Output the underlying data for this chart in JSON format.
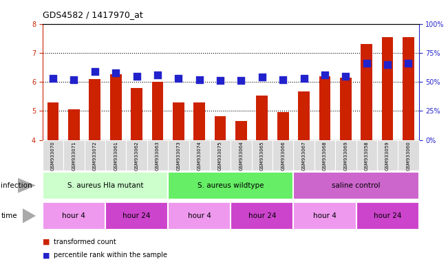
{
  "title": "GDS4582 / 1417970_at",
  "samples": [
    "GSM933070",
    "GSM933071",
    "GSM933072",
    "GSM933061",
    "GSM933062",
    "GSM933063",
    "GSM933073",
    "GSM933074",
    "GSM933075",
    "GSM933064",
    "GSM933065",
    "GSM933066",
    "GSM933067",
    "GSM933068",
    "GSM933069",
    "GSM933058",
    "GSM933059",
    "GSM933060"
  ],
  "transformed_count": [
    5.3,
    5.05,
    6.1,
    6.25,
    5.78,
    6.0,
    5.3,
    5.3,
    4.82,
    4.65,
    5.52,
    4.97,
    5.68,
    6.2,
    6.15,
    7.3,
    7.55,
    7.55
  ],
  "percentile_rank_pct": [
    53,
    52,
    59,
    58,
    55,
    56,
    53,
    52,
    51,
    51,
    54,
    52,
    53,
    56,
    55,
    66,
    65,
    66
  ],
  "ylim": [
    4,
    8
  ],
  "ylim_right": [
    0,
    100
  ],
  "yticks_left": [
    4,
    5,
    6,
    7,
    8
  ],
  "yticks_right": [
    0,
    25,
    50,
    75,
    100
  ],
  "bar_color": "#cc2200",
  "dot_color": "#2222cc",
  "infection_groups": [
    {
      "label": "S. aureus Hla mutant",
      "start": 0,
      "end": 6,
      "color": "#ccffcc"
    },
    {
      "label": "S. aureus wildtype",
      "start": 6,
      "end": 12,
      "color": "#66ee66"
    },
    {
      "label": "saline control",
      "start": 12,
      "end": 18,
      "color": "#cc66cc"
    }
  ],
  "time_groups": [
    {
      "label": "hour 4",
      "start": 0,
      "end": 3,
      "color": "#ee99ee"
    },
    {
      "label": "hour 24",
      "start": 3,
      "end": 6,
      "color": "#cc44cc"
    },
    {
      "label": "hour 4",
      "start": 6,
      "end": 9,
      "color": "#ee99ee"
    },
    {
      "label": "hour 24",
      "start": 9,
      "end": 12,
      "color": "#cc44cc"
    },
    {
      "label": "hour 4",
      "start": 12,
      "end": 15,
      "color": "#ee99ee"
    },
    {
      "label": "hour 24",
      "start": 15,
      "end": 18,
      "color": "#cc44cc"
    }
  ],
  "legend_items": [
    {
      "label": "transformed count",
      "color": "#cc2200"
    },
    {
      "label": "percentile rank within the sample",
      "color": "#2222cc"
    }
  ],
  "bar_width": 0.55,
  "dot_size": 55,
  "dot_marker": "s",
  "background_color": "#ffffff",
  "left_axis_color": "#cc2200",
  "right_axis_color": "#2222cc",
  "sample_box_color": "#dddddd",
  "label_color_infection": "#888888",
  "label_color_time": "#888888"
}
